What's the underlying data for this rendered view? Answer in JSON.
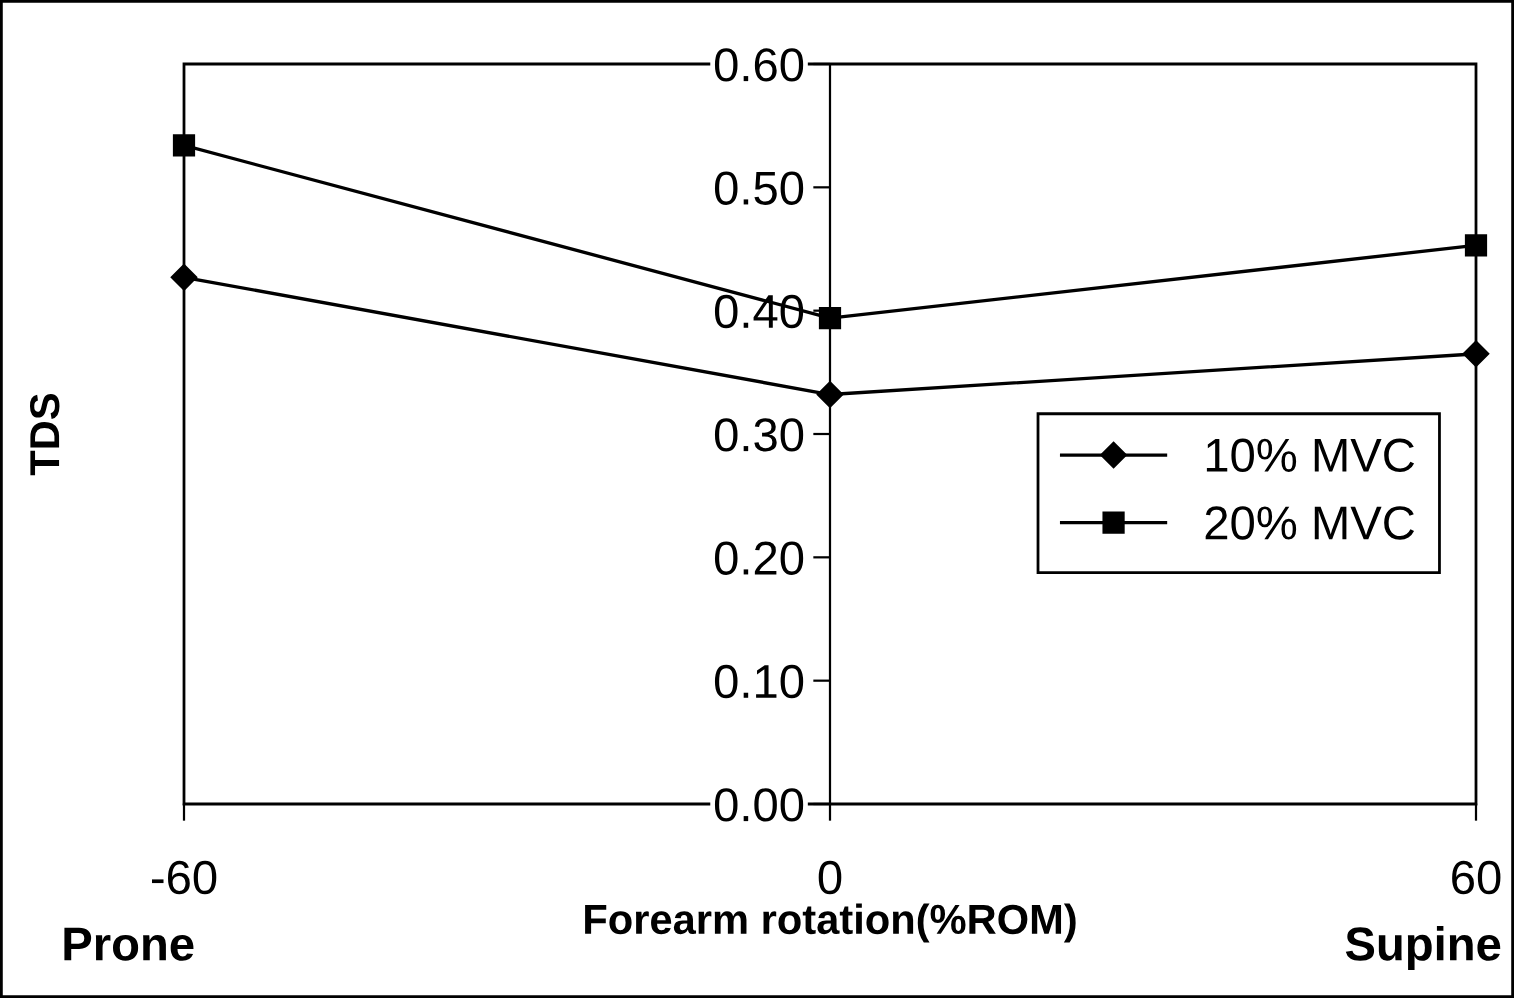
{
  "chart_data": {
    "type": "line",
    "xlabel": "Forearm rotation(%ROM)",
    "ylabel": "TDS",
    "x": [
      -60,
      0,
      60
    ],
    "series": [
      {
        "name": "10% MVC",
        "color": "#000000",
        "marker": "diamond",
        "values": [
          0.427,
          0.332,
          0.365
        ]
      },
      {
        "name": "20% MVC",
        "color": "#000000",
        "marker": "square",
        "values": [
          0.534,
          0.394,
          0.453
        ]
      }
    ],
    "xlim": [
      -60,
      60
    ],
    "xticks": [
      -60,
      0,
      60
    ],
    "ylim": [
      0,
      0.6
    ],
    "yticks": [
      {
        "value": 0,
        "label": "0.00"
      },
      {
        "value": 0.1,
        "label": "0.10"
      },
      {
        "value": 0.2,
        "label": "0.20"
      },
      {
        "value": 0.3,
        "label": "0.30"
      },
      {
        "value": 0.4,
        "label": "0.40"
      },
      {
        "value": 0.5,
        "label": "0.50"
      },
      {
        "value": 0.6,
        "label": "0.60"
      }
    ],
    "grid": false,
    "legend": "right",
    "line_style": "solid",
    "annotations": [
      "Prone",
      "Supine"
    ]
  }
}
